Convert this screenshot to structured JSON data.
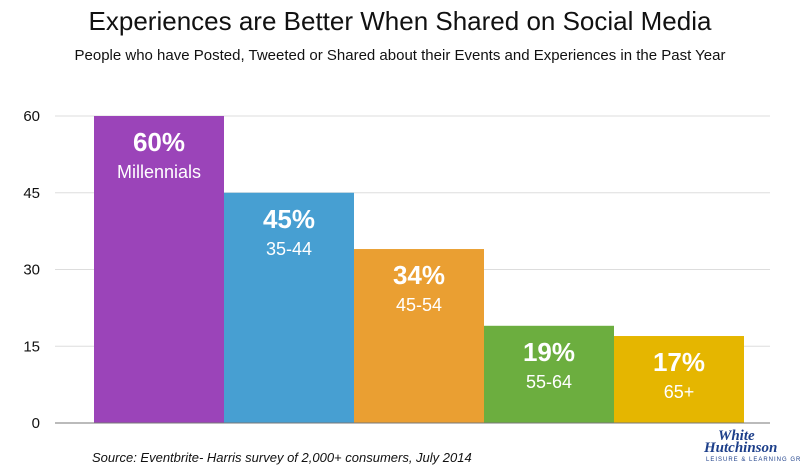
{
  "chart_data": {
    "type": "bar",
    "title": "Experiences are Better When Shared on Social Media",
    "subtitle": "People who have Posted, Tweeted or Shared about their Events and Experiences in the Past Year",
    "categories": [
      "Millennials",
      "35-44",
      "45-54",
      "55-64",
      "65+"
    ],
    "values": [
      60,
      45,
      34,
      19,
      17
    ],
    "value_labels": [
      "60%",
      "45%",
      "34%",
      "19%",
      "17%"
    ],
    "colors": [
      "#9b44b9",
      "#479fd2",
      "#ea9f32",
      "#6cae3f",
      "#e5b600"
    ],
    "ylim": [
      0,
      60
    ],
    "yticks": [
      0,
      15,
      30,
      45,
      60
    ],
    "xlabel": "",
    "ylabel": "",
    "grid": true,
    "legend": "none"
  },
  "source": "Source: Eventbrite- Harris survey of 2,000+ consumers, July 2014",
  "logo": {
    "line1": "White",
    "line2": "Hutchinson",
    "line3": "LEISURE & LEARNING GROUP"
  }
}
